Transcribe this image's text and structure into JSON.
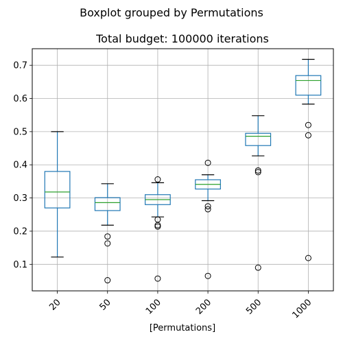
{
  "chart_data": {
    "type": "box",
    "suptitle": "Boxplot grouped by Permutations",
    "title": "Total budget: 100000 iterations",
    "xlabel": "[Permutations]",
    "ylabel": "",
    "ylim": [
      0.02,
      0.75
    ],
    "yticks": [
      0.1,
      0.2,
      0.3,
      0.4,
      0.5,
      0.6,
      0.7
    ],
    "ytick_labels": [
      "0.1",
      "0.2",
      "0.3",
      "0.4",
      "0.5",
      "0.6",
      "0.7"
    ],
    "grid": true,
    "categories": [
      "20",
      "50",
      "100",
      "200",
      "500",
      "1000"
    ],
    "boxes": [
      {
        "category": "20",
        "whisker_low": 0.122,
        "q1": 0.27,
        "median": 0.318,
        "q3": 0.38,
        "whisker_high": 0.5,
        "outliers": []
      },
      {
        "category": "50",
        "whisker_low": 0.218,
        "q1": 0.262,
        "median": 0.286,
        "q3": 0.301,
        "whisker_high": 0.343,
        "outliers": [
          0.184,
          0.163,
          0.052
        ]
      },
      {
        "category": "100",
        "whisker_low": 0.243,
        "q1": 0.28,
        "median": 0.295,
        "q3": 0.31,
        "whisker_high": 0.346,
        "outliers": [
          0.356,
          0.235,
          0.218,
          0.214,
          0.057
        ]
      },
      {
        "category": "200",
        "whisker_low": 0.292,
        "q1": 0.327,
        "median": 0.341,
        "q3": 0.355,
        "whisker_high": 0.37,
        "outliers": [
          0.406,
          0.275,
          0.266,
          0.065
        ]
      },
      {
        "category": "500",
        "whisker_low": 0.427,
        "q1": 0.458,
        "median": 0.486,
        "q3": 0.495,
        "whisker_high": 0.548,
        "outliers": [
          0.383,
          0.378,
          0.09
        ]
      },
      {
        "category": "1000",
        "whisker_low": 0.583,
        "q1": 0.61,
        "median": 0.654,
        "q3": 0.669,
        "whisker_high": 0.718,
        "outliers": [
          0.52,
          0.489,
          0.119
        ]
      }
    ],
    "colors": {
      "box": "#1f77b4",
      "median": "#2ca02c",
      "whisker": "#1f77b4",
      "cap": "#000000",
      "flier": "#000000",
      "grid": "#b0b0b0"
    }
  }
}
